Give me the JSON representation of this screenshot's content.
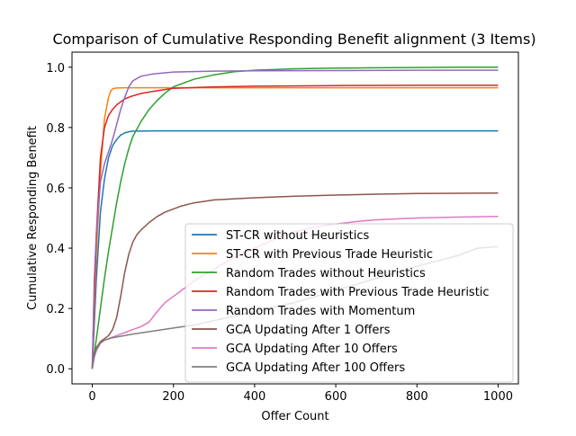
{
  "chart_data": {
    "type": "line",
    "title": "Comparison of Cumulative Responding Benefit alignment (3 Items)",
    "xlabel": "Offer Count",
    "ylabel": "Cumulative Responding Benefit",
    "xlim": [
      -50,
      1050
    ],
    "ylim": [
      -0.05,
      1.05
    ],
    "xticks": [
      0,
      200,
      400,
      600,
      800,
      1000
    ],
    "yticks": [
      0.0,
      0.2,
      0.4,
      0.6,
      0.8,
      1.0
    ],
    "xtick_labels": [
      "0",
      "200",
      "400",
      "600",
      "800",
      "1000"
    ],
    "ytick_labels": [
      "0.0",
      "0.2",
      "0.4",
      "0.6",
      "0.8",
      "1.0"
    ],
    "grid": false,
    "legend_position": "lower-right",
    "series": [
      {
        "name": "ST-CR without Heuristics",
        "color": "#1f77b4",
        "x": [
          0,
          5,
          10,
          20,
          30,
          40,
          50,
          60,
          70,
          80,
          90,
          100,
          150,
          200,
          400,
          600,
          800,
          1000
        ],
        "y": [
          0.0,
          0.15,
          0.3,
          0.52,
          0.63,
          0.7,
          0.74,
          0.76,
          0.775,
          0.782,
          0.786,
          0.788,
          0.789,
          0.789,
          0.789,
          0.789,
          0.789,
          0.789
        ]
      },
      {
        "name": "ST-CR with Previous Trade Heuristic",
        "color": "#ff7f0e",
        "x": [
          0,
          5,
          10,
          20,
          30,
          40,
          45,
          50,
          55,
          60,
          80,
          100,
          200,
          400,
          600,
          800,
          1000
        ],
        "y": [
          0.0,
          0.2,
          0.38,
          0.65,
          0.83,
          0.9,
          0.92,
          0.928,
          0.93,
          0.931,
          0.932,
          0.932,
          0.932,
          0.932,
          0.932,
          0.932,
          0.932
        ]
      },
      {
        "name": "Random Trades without Heuristics",
        "color": "#2ca02c",
        "x": [
          0,
          10,
          20,
          30,
          40,
          50,
          60,
          70,
          80,
          90,
          100,
          120,
          140,
          160,
          180,
          200,
          250,
          300,
          350,
          400,
          500,
          600,
          700,
          800,
          900,
          1000
        ],
        "y": [
          0.0,
          0.1,
          0.2,
          0.3,
          0.39,
          0.47,
          0.55,
          0.62,
          0.68,
          0.73,
          0.77,
          0.82,
          0.86,
          0.89,
          0.915,
          0.935,
          0.96,
          0.975,
          0.985,
          0.99,
          0.995,
          0.997,
          0.998,
          0.999,
          1.0,
          1.0
        ]
      },
      {
        "name": "Random Trades with Previous Trade Heuristic",
        "color": "#d62728",
        "x": [
          0,
          5,
          10,
          20,
          30,
          40,
          50,
          60,
          80,
          100,
          120,
          150,
          200,
          300,
          400,
          600,
          800,
          1000
        ],
        "y": [
          0.0,
          0.25,
          0.45,
          0.7,
          0.8,
          0.84,
          0.86,
          0.875,
          0.895,
          0.905,
          0.913,
          0.92,
          0.93,
          0.935,
          0.937,
          0.939,
          0.94,
          0.94
        ]
      },
      {
        "name": "Random Trades with Momentum",
        "color": "#9467bd",
        "x": [
          0,
          5,
          10,
          20,
          30,
          40,
          50,
          60,
          70,
          80,
          90,
          100,
          120,
          150,
          200,
          300,
          400,
          600,
          800,
          1000
        ],
        "y": [
          0.0,
          0.3,
          0.45,
          0.62,
          0.68,
          0.72,
          0.76,
          0.81,
          0.86,
          0.9,
          0.935,
          0.955,
          0.97,
          0.978,
          0.984,
          0.987,
          0.988,
          0.989,
          0.99,
          0.99
        ]
      },
      {
        "name": "GCA Updating After 1 Offers",
        "color": "#8c564b",
        "x": [
          0,
          5,
          10,
          20,
          30,
          40,
          50,
          60,
          70,
          80,
          90,
          100,
          110,
          120,
          140,
          160,
          180,
          200,
          220,
          250,
          300,
          400,
          500,
          600,
          700,
          800,
          900,
          1000
        ],
        "y": [
          0.0,
          0.05,
          0.07,
          0.09,
          0.1,
          0.11,
          0.13,
          0.17,
          0.24,
          0.32,
          0.38,
          0.42,
          0.445,
          0.46,
          0.485,
          0.505,
          0.52,
          0.53,
          0.54,
          0.55,
          0.56,
          0.567,
          0.572,
          0.576,
          0.579,
          0.581,
          0.582,
          0.583
        ]
      },
      {
        "name": "GCA Updating After 10 Offers",
        "color": "#e377c2",
        "x": [
          0,
          5,
          10,
          20,
          30,
          50,
          80,
          100,
          120,
          140,
          160,
          180,
          200,
          220,
          250,
          300,
          350,
          400,
          450,
          500,
          550,
          600,
          650,
          700,
          800,
          900,
          1000
        ],
        "y": [
          0.0,
          0.04,
          0.06,
          0.085,
          0.095,
          0.105,
          0.12,
          0.13,
          0.14,
          0.155,
          0.19,
          0.22,
          0.24,
          0.26,
          0.29,
          0.33,
          0.37,
          0.4,
          0.43,
          0.455,
          0.47,
          0.48,
          0.488,
          0.494,
          0.5,
          0.503,
          0.505
        ]
      },
      {
        "name": "GCA Updating After 100 Offers",
        "color": "#7f7f7f",
        "x": [
          0,
          5,
          10,
          20,
          30,
          50,
          80,
          100,
          150,
          200,
          250,
          300,
          400,
          500,
          600,
          700,
          800,
          900,
          950,
          1000
        ],
        "y": [
          0.0,
          0.04,
          0.065,
          0.085,
          0.095,
          0.103,
          0.11,
          0.115,
          0.125,
          0.135,
          0.145,
          0.16,
          0.19,
          0.22,
          0.26,
          0.3,
          0.34,
          0.375,
          0.4,
          0.405
        ]
      }
    ]
  }
}
